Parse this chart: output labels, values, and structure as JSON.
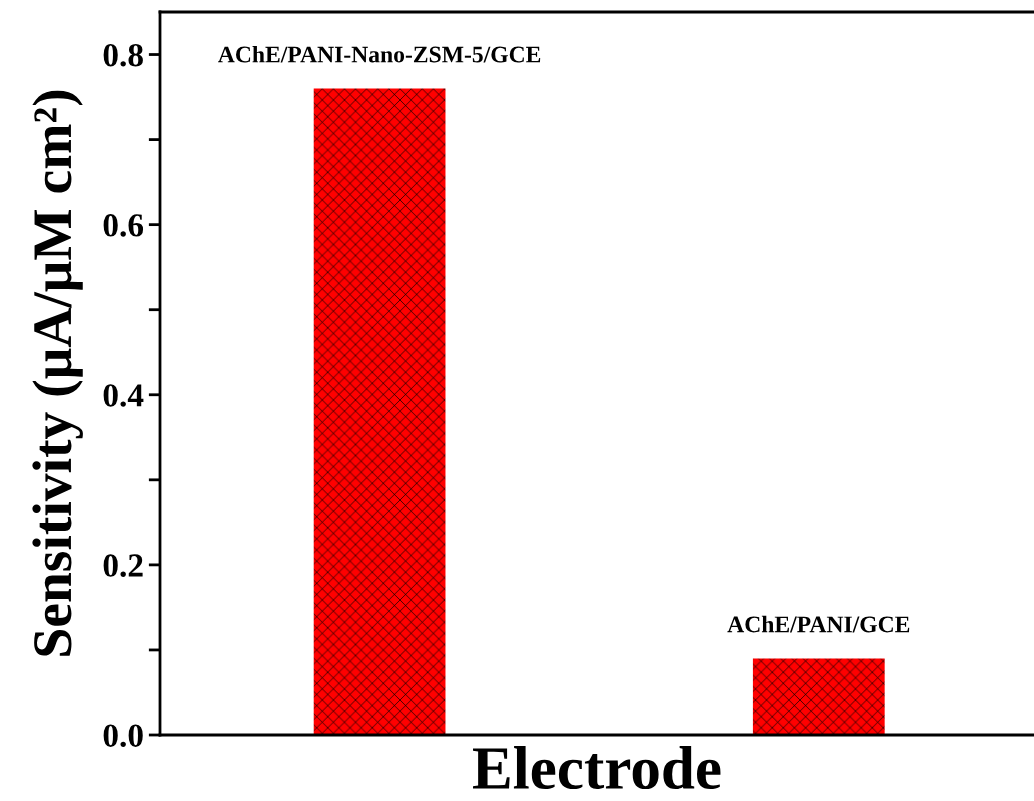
{
  "chart_data": {
    "type": "bar",
    "categories": [
      "AChE/PANI-Nano-ZSM-5/GCE",
      "AChE/PANI/GCE"
    ],
    "values": [
      0.76,
      0.09
    ],
    "color": "#ff0000",
    "xlabel": "Electrode",
    "ylabel": "Sensitivity (μA/μM cm²)",
    "ylim": [
      0,
      0.85
    ],
    "yticks": [
      {
        "value": 0,
        "label": "0.0"
      },
      {
        "value": 0.1,
        "label": null
      },
      0.2,
      {
        "value": 0.3,
        "label": null
      },
      0.4,
      {
        "value": 0.5,
        "label": null
      },
      0.6,
      {
        "value": 0.7,
        "label": null
      },
      0.8
    ],
    "tick_labels": "y",
    "grid": false,
    "legend": false
  }
}
